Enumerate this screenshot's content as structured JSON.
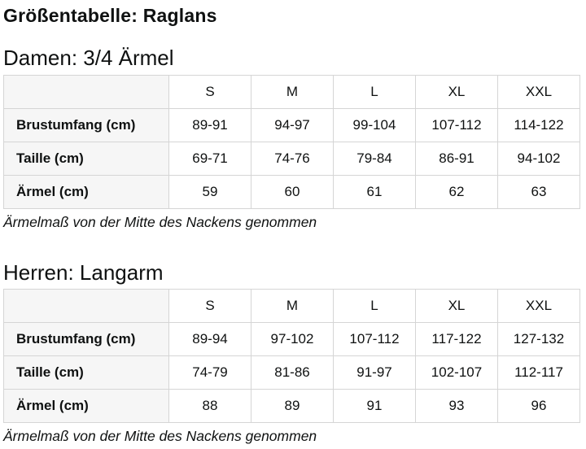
{
  "page": {
    "title": "Größentabelle: Raglans"
  },
  "sections": [
    {
      "heading": "Damen: 3/4 Ärmel",
      "table": {
        "col_headers": [
          "S",
          "M",
          "L",
          "XL",
          "XXL"
        ],
        "rows": [
          {
            "label": "Brustumfang (cm)",
            "values": [
              "89-91",
              "94-97",
              "99-104",
              "107-112",
              "114-122"
            ]
          },
          {
            "label": "Taille (cm)",
            "values": [
              "69-71",
              "74-76",
              "79-84",
              "86-91",
              "94-102"
            ]
          },
          {
            "label": "Ärmel (cm)",
            "values": [
              "59",
              "60",
              "61",
              "62",
              "63"
            ]
          }
        ]
      },
      "footnote": "Ärmelmaß von der Mitte des Nackens genommen"
    },
    {
      "heading": "Herren: Langarm",
      "table": {
        "col_headers": [
          "S",
          "M",
          "L",
          "XL",
          "XXL"
        ],
        "rows": [
          {
            "label": "Brustumfang (cm)",
            "values": [
              "89-94",
              "97-102",
              "107-112",
              "117-122",
              "127-132"
            ]
          },
          {
            "label": "Taille (cm)",
            "values": [
              "74-79",
              "81-86",
              "91-97",
              "102-107",
              "112-117"
            ]
          },
          {
            "label": "Ärmel (cm)",
            "values": [
              "88",
              "89",
              "91",
              "93",
              "96"
            ]
          }
        ]
      },
      "footnote": "Ärmelmaß von der Mitte des Nackens genommen"
    }
  ],
  "colors": {
    "text": "#0f1111",
    "border": "#d5d5d5",
    "label_column_bg": "#f6f6f6",
    "background": "#ffffff"
  }
}
